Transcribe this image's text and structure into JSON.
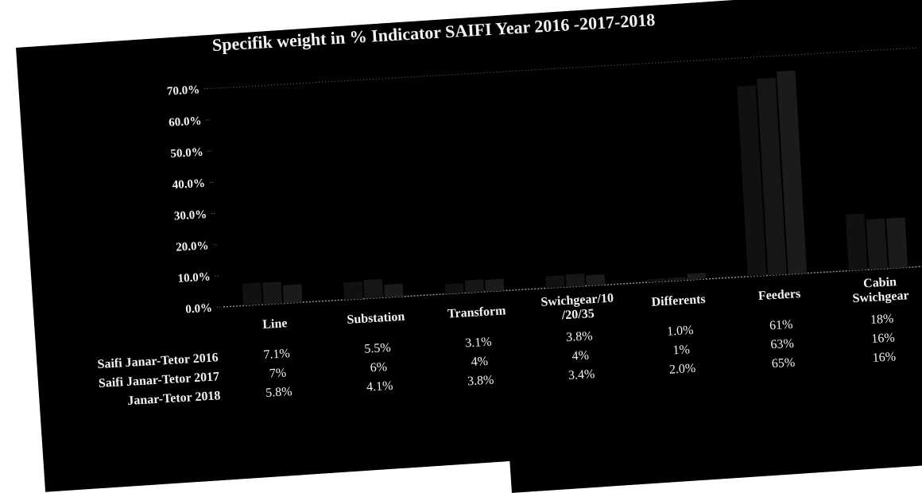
{
  "chart_data": {
    "type": "bar",
    "title": "Specifik weight in %  Indicator SAIFI Year 2016 -2017-2018",
    "categories": [
      "Line",
      "Substation",
      "Transform",
      "Swichgear/10 /20/35",
      "Differents",
      "Feeders",
      "Cabin Swichgear"
    ],
    "ylim": [
      0,
      70
    ],
    "yticks": [
      "0.0%",
      "10.0%",
      "20.0%",
      "30.0%",
      "40.0%",
      "50.0%",
      "60.0%",
      "70.0%"
    ],
    "series": [
      {
        "name": "Saifi Janar-Tetor 2016",
        "values": [
          7.1,
          5.5,
          3.1,
          3.8,
          1.0,
          61,
          18
        ],
        "labels": [
          "7.1%",
          "5.5%",
          "3.1%",
          "3.8%",
          "1.0%",
          "61%",
          "18%"
        ]
      },
      {
        "name": "Saifi Janar-Tetor 2017",
        "values": [
          7,
          6,
          4,
          4,
          1,
          63,
          16
        ],
        "labels": [
          "7%",
          "6%",
          "4%",
          "4%",
          "1%",
          "63%",
          "16%"
        ]
      },
      {
        "name": "Janar-Tetor 2018",
        "values": [
          5.8,
          4.1,
          3.8,
          3.4,
          2.0,
          65,
          16
        ],
        "labels": [
          "5.8%",
          "4.1%",
          "3.8%",
          "3.4%",
          "2.0%",
          "65%",
          "16%"
        ]
      }
    ],
    "grid": false,
    "legend": "data-table"
  }
}
